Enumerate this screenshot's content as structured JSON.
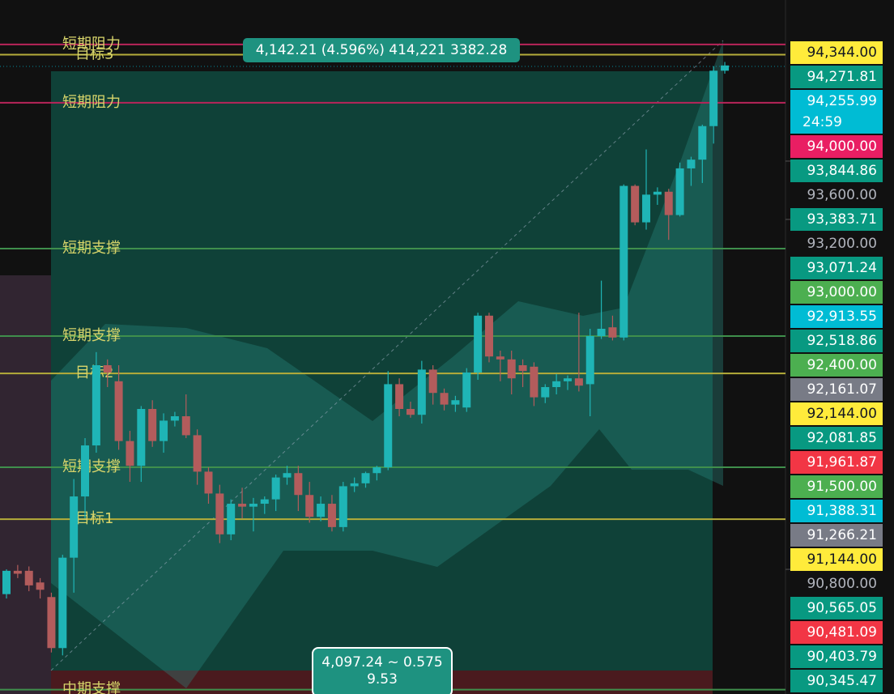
{
  "chart_data": {
    "type": "candlestick",
    "ylim": [
      89945,
      94705
    ],
    "yticks": [
      {
        "value": 93600,
        "label": "93,600.00"
      },
      {
        "value": 93200,
        "label": "93,200.00"
      },
      {
        "value": 90800,
        "label": "90,800.00"
      }
    ],
    "up_color": "#1fb5b6",
    "down_color": "#b35c5c",
    "ohlc": [
      [
        90630,
        90800,
        90600,
        90790
      ],
      [
        90790,
        90830,
        90740,
        90770
      ],
      [
        90790,
        90820,
        90650,
        90690
      ],
      [
        90710,
        90740,
        90600,
        90660
      ],
      [
        90610,
        90640,
        90230,
        90260
      ],
      [
        90260,
        90900,
        90210,
        90880
      ],
      [
        90880,
        91420,
        90640,
        91300
      ],
      [
        91300,
        91700,
        91150,
        91650
      ],
      [
        91650,
        92290,
        91600,
        92200
      ],
      [
        92200,
        92240,
        92050,
        92150
      ],
      [
        92090,
        92200,
        91620,
        91680
      ],
      [
        91680,
        91750,
        91400,
        91510
      ],
      [
        91510,
        91920,
        91400,
        91900
      ],
      [
        91900,
        91960,
        91640,
        91680
      ],
      [
        91680,
        91870,
        91600,
        91820
      ],
      [
        91820,
        91880,
        91780,
        91850
      ],
      [
        91850,
        92000,
        91700,
        91720
      ],
      [
        91720,
        91760,
        91380,
        91470
      ],
      [
        91470,
        91500,
        91250,
        91320
      ],
      [
        91320,
        91380,
        90980,
        91040
      ],
      [
        91040,
        91280,
        91000,
        91250
      ],
      [
        91250,
        91360,
        91150,
        91230
      ],
      [
        91230,
        91290,
        91060,
        91250
      ],
      [
        91250,
        91300,
        91180,
        91280
      ],
      [
        91280,
        91450,
        91200,
        91430
      ],
      [
        91430,
        91510,
        91380,
        91460
      ],
      [
        91460,
        91510,
        91200,
        91310
      ],
      [
        91310,
        91400,
        91120,
        91160
      ],
      [
        91160,
        91300,
        91130,
        91250
      ],
      [
        91250,
        91310,
        91060,
        91090
      ],
      [
        91090,
        91400,
        91060,
        91370
      ],
      [
        91370,
        91430,
        91330,
        91390
      ],
      [
        91390,
        91470,
        91360,
        91460
      ],
      [
        91460,
        91510,
        91410,
        91500
      ],
      [
        91500,
        92160,
        91480,
        92070
      ],
      [
        92070,
        92110,
        91850,
        91900
      ],
      [
        91900,
        91950,
        91840,
        91860
      ],
      [
        91860,
        92230,
        91800,
        92170
      ],
      [
        92170,
        92200,
        91930,
        92010
      ],
      [
        92010,
        92040,
        91890,
        91930
      ],
      [
        91930,
        91990,
        91880,
        91960
      ],
      [
        91910,
        92180,
        91880,
        92150
      ],
      [
        92150,
        92560,
        92100,
        92540
      ],
      [
        92540,
        92560,
        92220,
        92260
      ],
      [
        92260,
        92300,
        92090,
        92240
      ],
      [
        92240,
        92300,
        92000,
        92110
      ],
      [
        92200,
        92240,
        92050,
        92160
      ],
      [
        92190,
        92220,
        91920,
        91980
      ],
      [
        91980,
        92070,
        91940,
        92050
      ],
      [
        92050,
        92140,
        92000,
        92090
      ],
      [
        92090,
        92130,
        92030,
        92110
      ],
      [
        92110,
        92560,
        92020,
        92060
      ],
      [
        92070,
        92450,
        91850,
        92400
      ],
      [
        92400,
        92780,
        92380,
        92450
      ],
      [
        92460,
        92540,
        92370,
        92390
      ],
      [
        92390,
        93440,
        92370,
        93430
      ],
      [
        93430,
        93440,
        93160,
        93180
      ],
      [
        93180,
        93680,
        93130,
        93370
      ],
      [
        93370,
        93420,
        93300,
        93390
      ],
      [
        93390,
        93410,
        93060,
        93230
      ],
      [
        93230,
        93590,
        93220,
        93550
      ],
      [
        93550,
        93630,
        93430,
        93610
      ],
      [
        93610,
        93850,
        93450,
        93840
      ],
      [
        93840,
        94250,
        93720,
        94220
      ],
      [
        94220,
        94280,
        94200,
        94256
      ]
    ],
    "levels": [
      {
        "value": 94400,
        "label": "短期阻力",
        "color": "#b8245a"
      },
      {
        "value": 94330,
        "label": "目标3",
        "color": "#b5ad3a"
      },
      {
        "value": 94000,
        "label": "短期阻力",
        "color": "#b8245a"
      },
      {
        "value": 93000,
        "label": "短期支撑",
        "color": "#3f8f4c"
      },
      {
        "value": 92400,
        "label": "短期支撑",
        "color": "#3f8f4c"
      },
      {
        "value": 92144,
        "label": "目标2",
        "color": "#b5ad3a"
      },
      {
        "value": 91500,
        "label": "短期支撑",
        "color": "#3f8f4c"
      },
      {
        "value": 91144,
        "label": "目标1",
        "color": "#b5ad3a"
      },
      {
        "value": 89975,
        "label": "中期支撑",
        "color": "#3f8f4c"
      }
    ],
    "price_labels": [
      {
        "value": 94344,
        "label": "94,344.00",
        "color": "#ffeb3b"
      },
      {
        "value": 94271.81,
        "label": "94,271.81",
        "color": "#089981"
      },
      {
        "value": 94255.99,
        "label": "94,255.99",
        "color": "#00bcd4",
        "sublabel": "24:59"
      },
      {
        "value": 94000,
        "label": "94,000.00",
        "color": "#e91e63"
      },
      {
        "value": 93844.86,
        "label": "93,844.86",
        "color": "#089981"
      },
      {
        "value": 93383.71,
        "label": "93,383.71",
        "color": "#089981"
      },
      {
        "value": 93071.24,
        "label": "93,071.24",
        "color": "#089981"
      },
      {
        "value": 93000,
        "label": "93,000.00",
        "color": "#4caf50"
      },
      {
        "value": 92913.55,
        "label": "92,913.55",
        "color": "#00bcd4"
      },
      {
        "value": 92518.86,
        "label": "92,518.86",
        "color": "#089981"
      },
      {
        "value": 92400,
        "label": "92,400.00",
        "color": "#4caf50"
      },
      {
        "value": 92161.07,
        "label": "92,161.07",
        "color": "#787b86"
      },
      {
        "value": 92144,
        "label": "92,144.00",
        "color": "#ffeb3b"
      },
      {
        "value": 92081.85,
        "label": "92,081.85",
        "color": "#089981"
      },
      {
        "value": 91961.87,
        "label": "91,961.87",
        "color": "#f23645"
      },
      {
        "value": 91500,
        "label": "91,500.00",
        "color": "#4caf50"
      },
      {
        "value": 91388.31,
        "label": "91,388.31",
        "color": "#00bcd4"
      },
      {
        "value": 91266.21,
        "label": "91,266.21",
        "color": "#787b86"
      },
      {
        "value": 91144,
        "label": "91,144.00",
        "color": "#ffeb3b"
      },
      {
        "value": 90565.05,
        "label": "90,565.05",
        "color": "#089981"
      },
      {
        "value": 90481.09,
        "label": "90,481.09",
        "color": "#f23645"
      },
      {
        "value": 90403.79,
        "label": "90,403.79",
        "color": "#089981"
      },
      {
        "value": 90345.47,
        "label": "90,345.47",
        "color": "#089981"
      }
    ],
    "measure": {
      "top": "4,142.21 (4.596%) 414,221 3382.28",
      "bottom_line1": "4,097.24 ~ 0.575",
      "bottom_line2": "9.53"
    }
  }
}
